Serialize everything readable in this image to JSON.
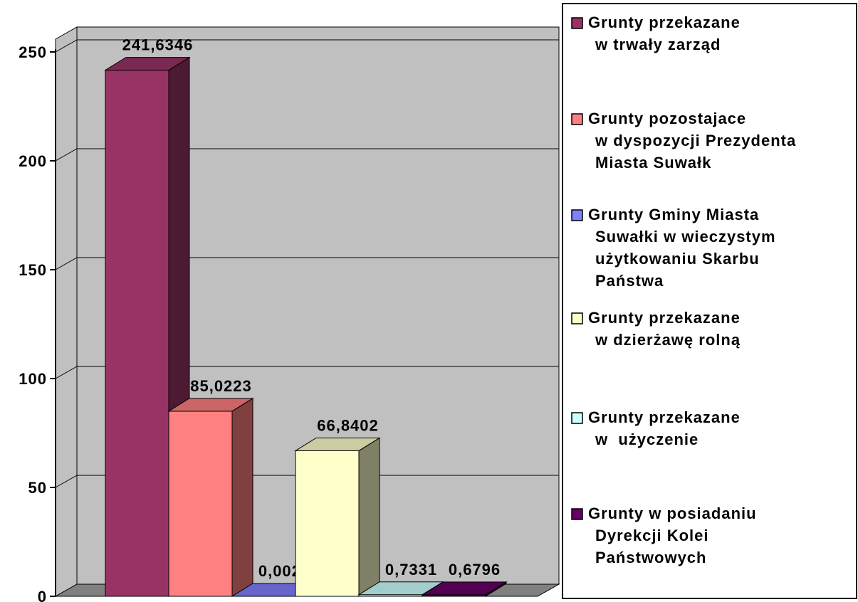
{
  "chart_data": {
    "type": "bar3d",
    "ylim": [
      0,
      250
    ],
    "yticks": [
      0,
      50,
      100,
      150,
      200,
      250
    ],
    "grid": true,
    "series": [
      {
        "name": "Grunty przekazane\nw trwały zarząd",
        "color": "#993366",
        "values": [
          241.6346
        ],
        "value_labels": [
          "241,6346"
        ]
      },
      {
        "name": "Grunty pozostajace\nw dyspozycji Prezydenta\nMiasta Suwałk",
        "color": "#ff8080",
        "values": [
          85.0223
        ],
        "value_labels": [
          "85,0223"
        ]
      },
      {
        "name": "Grunty Gminy Miasta\nSuwałki w wieczystym\nużytkowaniu Skarbu\nPaństwa",
        "color": "#8080ff",
        "values": [
          0.0022
        ],
        "value_labels": [
          "0,0022"
        ]
      },
      {
        "name": "Grunty przekazane\nw dzierżawę rolną",
        "color": "#ffffcc",
        "values": [
          66.8402
        ],
        "value_labels": [
          "66,8402"
        ]
      },
      {
        "name": "Grunty przekazane\nw  użyczenie",
        "color": "#ccffff",
        "values": [
          0.7331
        ],
        "value_labels": [
          "0,7331"
        ]
      },
      {
        "name": "Grunty w posiadaniu\nDyrekcji Kolei\nPaństwowych",
        "color": "#660066",
        "values": [
          0.6796
        ],
        "value_labels": [
          "0,6796"
        ]
      }
    ],
    "legend": "right"
  }
}
